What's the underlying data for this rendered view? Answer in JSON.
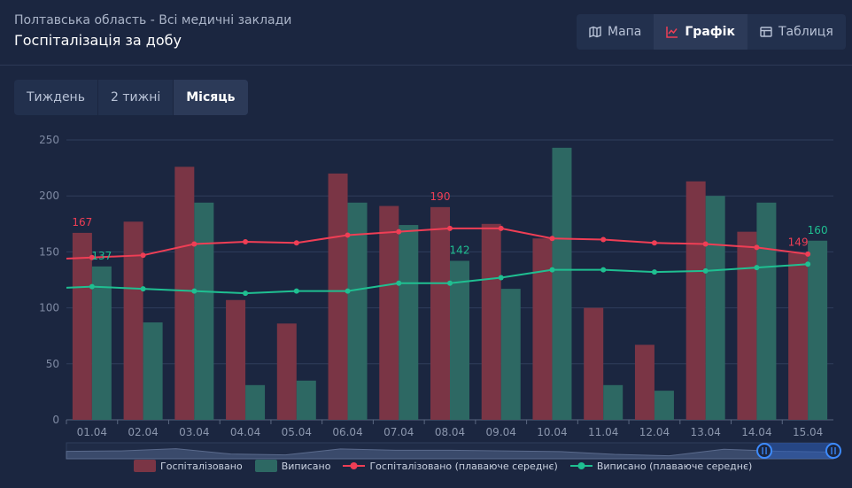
{
  "header": {
    "subtitle": "Полтавська область - Всі медичні заклади",
    "title": "Госпіталізація за добу"
  },
  "view_tabs": [
    {
      "label": "Мапа",
      "icon": "map-icon",
      "active": false
    },
    {
      "label": "Графік",
      "icon": "line-chart-icon",
      "active": true
    },
    {
      "label": "Таблиця",
      "icon": "table-icon",
      "active": false
    }
  ],
  "range_tabs": [
    {
      "label": "Тиждень",
      "active": false
    },
    {
      "label": "2 тижні",
      "active": false
    },
    {
      "label": "Місяць",
      "active": true
    }
  ],
  "colors": {
    "hospitalized_bar": "#7a3545",
    "discharged_bar": "#2d6863",
    "hospitalized_line": "#ef3e55",
    "discharged_line": "#1fbf91"
  },
  "chart_data": {
    "type": "bar",
    "categories": [
      "01.04",
      "02.04",
      "03.04",
      "04.04",
      "05.04",
      "06.04",
      "07.04",
      "08.04",
      "09.04",
      "10.04",
      "11.04",
      "12.04",
      "13.04",
      "14.04",
      "15.04"
    ],
    "ylim": [
      0,
      250
    ],
    "yticks": [
      0,
      50,
      100,
      150,
      200,
      250
    ],
    "grid": true,
    "legend_position": "bottom",
    "series": [
      {
        "name": "Госпіталізовано",
        "type": "bar",
        "values": [
          167,
          177,
          226,
          107,
          86,
          220,
          191,
          190,
          175,
          162,
          100,
          67,
          213,
          168,
          149
        ]
      },
      {
        "name": "Виписано",
        "type": "bar",
        "values": [
          137,
          87,
          194,
          31,
          35,
          194,
          174,
          142,
          117,
          243,
          31,
          26,
          200,
          194,
          160
        ]
      },
      {
        "name": "Госпіталізовано (плаваюче середнє)",
        "type": "line",
        "values": [
          145,
          147,
          157,
          159,
          158,
          165,
          168,
          171,
          171,
          162,
          161,
          158,
          157,
          154,
          148
        ],
        "start_value": 144
      },
      {
        "name": "Виписано (плаваюче середнє)",
        "type": "line",
        "values": [
          119,
          117,
          115,
          113,
          115,
          115,
          122,
          122,
          127,
          134,
          134,
          132,
          133,
          136,
          139
        ],
        "start_value": 118
      }
    ],
    "annotations": [
      {
        "series": "Госпіталізовано",
        "category": "01.04",
        "text": "167"
      },
      {
        "series": "Виписано",
        "category": "01.04",
        "text": "137"
      },
      {
        "series": "Госпіталізовано",
        "category": "08.04",
        "text": "190"
      },
      {
        "series": "Виписано",
        "category": "08.04",
        "text": "142"
      },
      {
        "series": "Госпіталізовано",
        "category": "15.04",
        "text": "149"
      },
      {
        "series": "Виписано",
        "category": "15.04",
        "text": "160"
      }
    ],
    "data_zoom": {
      "range_start": 0.91,
      "range_end": 1.0
    }
  }
}
